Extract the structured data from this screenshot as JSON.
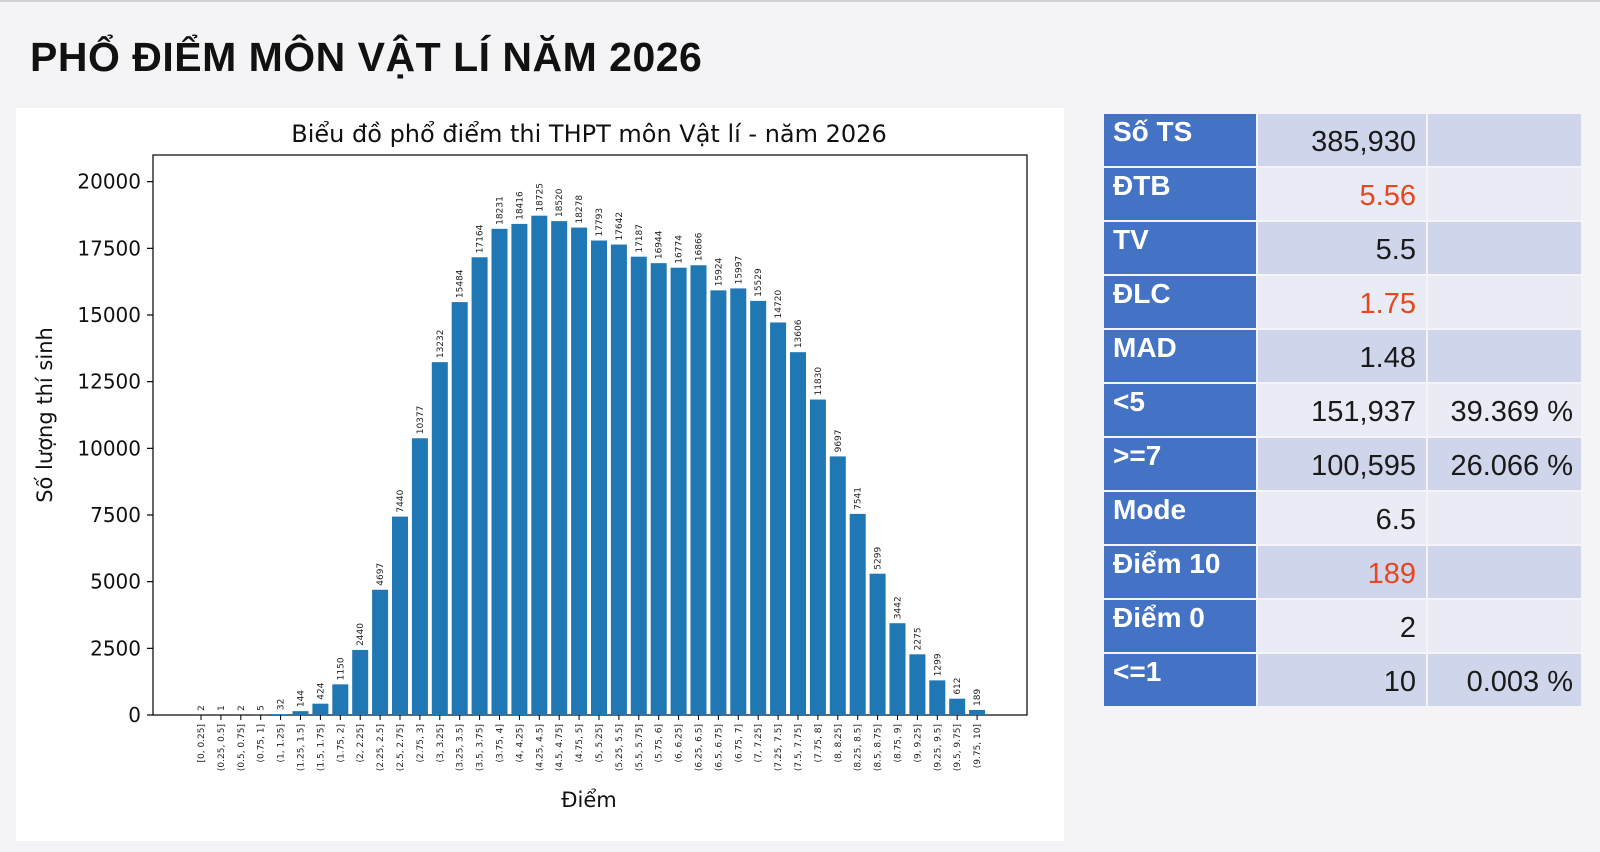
{
  "page_title": "PHỔ ĐIỂM MÔN VẬT LÍ NĂM 2026",
  "colors": {
    "bar": "#1f77b4",
    "table_header": "#4472c4",
    "highlight": "#e8461f"
  },
  "chart_data": {
    "type": "bar",
    "title": "Biểu đồ phổ điểm thi THPT môn Vật lí - năm 2026",
    "xlabel": "Điểm",
    "ylabel": "Số lượng thí sinh",
    "ylim": [
      0,
      21000
    ],
    "yticks": [
      0,
      2500,
      5000,
      7500,
      10000,
      12500,
      15000,
      17500,
      20000
    ],
    "categories": [
      "[0, 0.25]",
      "(0.25, 0.5]",
      "(0.5, 0.75]",
      "(0.75, 1]",
      "(1, 1.25]",
      "(1.25, 1.5]",
      "(1.5, 1.75]",
      "(1.75, 2]",
      "(2, 2.25]",
      "(2.25, 2.5]",
      "(2.5, 2.75]",
      "(2.75, 3]",
      "(3, 3.25]",
      "(3.25, 3.5]",
      "(3.5, 3.75]",
      "(3.75, 4]",
      "(4, 4.25]",
      "(4.25, 4.5]",
      "(4.5, 4.75]",
      "(4.75, 5]",
      "(5, 5.25]",
      "(5.25, 5.5]",
      "(5.5, 5.75]",
      "(5.75, 6]",
      "(6, 6.25]",
      "(6.25, 6.5]",
      "(6.5, 6.75]",
      "(6.75, 7]",
      "(7, 7.25]",
      "(7.25, 7.5]",
      "(7.5, 7.75]",
      "(7.75, 8]",
      "(8, 8.25]",
      "(8.25, 8.5]",
      "(8.5, 8.75]",
      "(8.75, 9]",
      "(9, 9.25]",
      "(9.25, 9.5]",
      "(9.5, 9.75]",
      "(9.75, 10]"
    ],
    "values": [
      2,
      1,
      2,
      5,
      32,
      144,
      424,
      1150,
      2440,
      4697,
      7440,
      10377,
      13232,
      15484,
      17164,
      18231,
      18416,
      18725,
      18520,
      18278,
      17793,
      17642,
      17187,
      16944,
      16774,
      16866,
      15924,
      15997,
      15529,
      14720,
      13606,
      11830,
      9697,
      7541,
      5299,
      3442,
      2275,
      1299,
      612,
      189
    ],
    "grid": false,
    "legend": "none"
  },
  "stats": [
    {
      "label": "Số TS",
      "value": "385,930",
      "pct": "",
      "highlight": false
    },
    {
      "label": "ĐTB",
      "value": "5.56",
      "pct": "",
      "highlight": true
    },
    {
      "label": "TV",
      "value": "5.5",
      "pct": "",
      "highlight": false
    },
    {
      "label": "ĐLC",
      "value": "1.75",
      "pct": "",
      "highlight": true
    },
    {
      "label": "MAD",
      "value": "1.48",
      "pct": "",
      "highlight": false
    },
    {
      "label": "<5",
      "value": "151,937",
      "pct": "39.369 %",
      "highlight": false
    },
    {
      "label": ">=7",
      "value": "100,595",
      "pct": "26.066 %",
      "highlight": false
    },
    {
      "label": "Mode",
      "value": "6.5",
      "pct": "",
      "highlight": false
    },
    {
      "label": "Điểm 10",
      "value": "189",
      "pct": "",
      "highlight": true
    },
    {
      "label": "Điểm 0",
      "value": "2",
      "pct": "",
      "highlight": false
    },
    {
      "label": "<=1",
      "value": "10",
      "pct": "0.003 %",
      "highlight": false
    }
  ]
}
